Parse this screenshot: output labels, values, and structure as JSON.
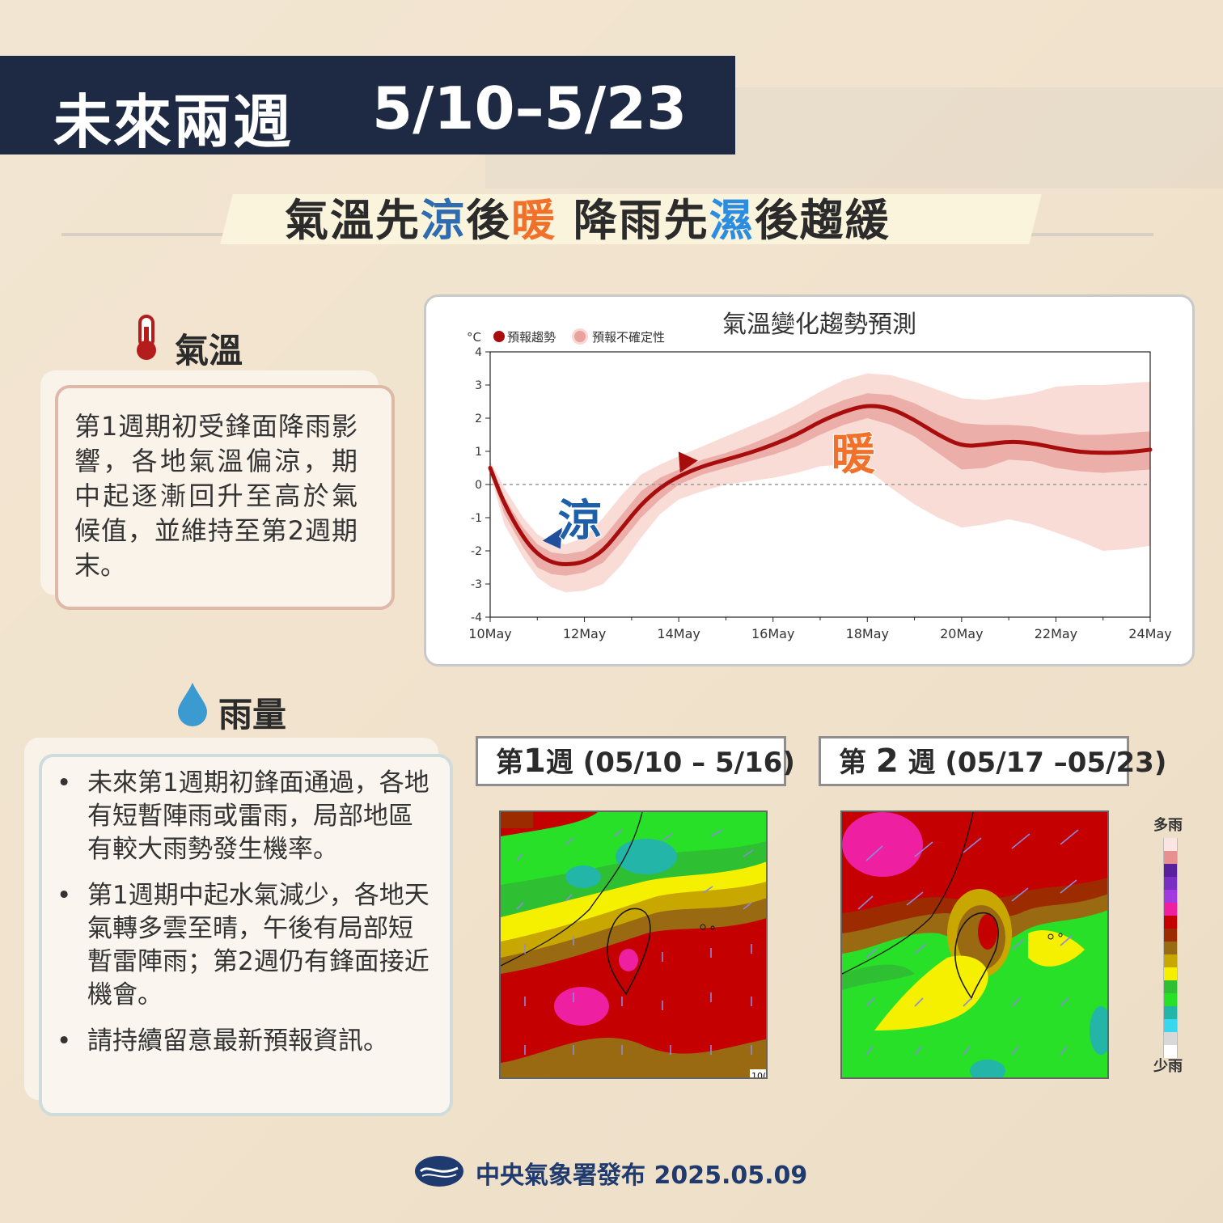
{
  "header": {
    "title": "未來兩週",
    "date_range": "5/10–5/23"
  },
  "subtitle": {
    "p1": "氣溫先",
    "p2": "涼",
    "p3": "後",
    "p4": "暖",
    "p5": " 降雨先",
    "p6": "濕",
    "p7": "後趨緩"
  },
  "temperature_section": {
    "heading": "氣溫",
    "description": "第1週期初受鋒面降雨影響，各地氣溫偏涼，期中起逐漸回升至高於氣候值，並維持至第2週期末。"
  },
  "rain_section": {
    "heading": "雨量",
    "bullets": [
      "未來第1週期初鋒面通過，各地有短暫陣雨或雷雨，局部地區有較大雨勢發生機率。",
      "第1週期中起水氣減少，各地天氣轉多雲至晴，午後有局部短暫雷陣雨；第2週仍有鋒面接近機會。",
      "請持續留意最新預報資訊。"
    ],
    "bullet_symbol": "•"
  },
  "chart_data": {
    "type": "line",
    "title": "氣溫變化趨勢預測",
    "ylabel": "°C",
    "legend": [
      "預報趨勢",
      "預報不確定性"
    ],
    "legend_placement": "top-left",
    "x_tick_labels": [
      "10May",
      "12May",
      "14May",
      "16May",
      "18May",
      "20May",
      "22May",
      "24May"
    ],
    "x_range": [
      10,
      24
    ],
    "ylim": [
      -4,
      4
    ],
    "y_ticks": [
      -4,
      -3,
      -2,
      -1,
      0,
      1,
      2,
      3,
      4
    ],
    "reference_line": 0,
    "series": [
      {
        "name": "預報趨勢",
        "x": [
          10,
          10.3,
          10.7,
          11,
          11.3,
          11.6,
          12,
          12.4,
          12.8,
          13.2,
          13.6,
          14,
          14.5,
          15,
          15.5,
          16,
          16.5,
          17,
          17.5,
          18,
          18.5,
          19,
          19.5,
          20,
          20.5,
          21,
          21.5,
          22,
          22.5,
          23,
          23.5,
          24
        ],
        "values": [
          0.5,
          -0.6,
          -1.6,
          -2.1,
          -2.35,
          -2.42,
          -2.35,
          -2.0,
          -1.3,
          -0.6,
          -0.1,
          0.25,
          0.55,
          0.75,
          0.95,
          1.2,
          1.5,
          1.9,
          2.2,
          2.4,
          2.3,
          1.95,
          1.5,
          1.15,
          1.2,
          1.3,
          1.25,
          1.1,
          0.98,
          0.95,
          0.97,
          1.05
        ]
      }
    ],
    "uncertainty_inner": {
      "upper": [
        0.6,
        -0.4,
        -1.3,
        -1.8,
        -2.05,
        -2.1,
        -2.0,
        -1.6,
        -0.9,
        -0.2,
        0.2,
        0.45,
        0.75,
        0.95,
        1.2,
        1.5,
        1.85,
        2.25,
        2.55,
        2.75,
        2.7,
        2.45,
        2.1,
        1.85,
        1.8,
        1.8,
        1.75,
        1.6,
        1.5,
        1.5,
        1.55,
        1.6
      ],
      "lower": [
        0.4,
        -0.9,
        -1.9,
        -2.5,
        -2.7,
        -2.75,
        -2.65,
        -2.35,
        -1.7,
        -1.0,
        -0.45,
        0.0,
        0.3,
        0.5,
        0.7,
        0.9,
        1.15,
        1.5,
        1.8,
        2.0,
        1.8,
        1.45,
        0.95,
        0.45,
        0.5,
        0.75,
        0.7,
        0.5,
        0.4,
        0.35,
        0.4,
        0.45
      ]
    },
    "uncertainty_outer": {
      "upper": [
        0.7,
        -0.1,
        -1.0,
        -1.5,
        -1.75,
        -1.8,
        -1.6,
        -1.0,
        -0.3,
        0.3,
        0.6,
        0.85,
        1.15,
        1.45,
        1.75,
        2.05,
        2.4,
        2.8,
        3.15,
        3.35,
        3.3,
        3.1,
        2.85,
        2.6,
        2.55,
        2.65,
        2.75,
        2.95,
        3.0,
        3.0,
        3.05,
        3.1
      ],
      "lower": [
        0.3,
        -1.2,
        -2.2,
        -2.8,
        -3.1,
        -3.25,
        -3.2,
        -3.0,
        -2.4,
        -1.6,
        -0.9,
        -0.45,
        -0.2,
        0.0,
        0.1,
        0.2,
        0.35,
        0.55,
        0.6,
        0.45,
        -0.1,
        -0.6,
        -1.0,
        -1.3,
        -1.2,
        -1.05,
        -1.2,
        -1.45,
        -1.7,
        -2.0,
        -1.95,
        -1.85
      ]
    },
    "annotations": [
      {
        "text": "涼",
        "x": 11.9,
        "y": -1.0,
        "color": "#1f5fa8"
      },
      {
        "text": "暖",
        "x": 17.7,
        "y": 1.0,
        "color": "#f2712a"
      }
    ],
    "grid": false
  },
  "maps": {
    "week1_label": {
      "p1": "第",
      "p2": "1",
      "p3": "週 (05/10 – 5/16)"
    },
    "week2_label": {
      "p1": "第 ",
      "p2": "2",
      "p3": " 週 (05/17 –05/23)"
    },
    "week1_corner_text": "10("
  },
  "legend": {
    "top_label": "多雨",
    "bottom_label": "少雨",
    "colors": [
      "#fbe4e4",
      "#e88f8f",
      "#5a1f9c",
      "#7a2fc4",
      "#a23ae0",
      "#ee1fa0",
      "#c40000",
      "#9c2b00",
      "#9a6a12",
      "#c8a800",
      "#f5f000",
      "#2fbf32",
      "#28e028",
      "#22b5a8",
      "#36d8f0",
      "#d8d8d8",
      "#ffffff"
    ]
  },
  "footer": {
    "text": "中央氣象署發布 2025.05.09"
  }
}
